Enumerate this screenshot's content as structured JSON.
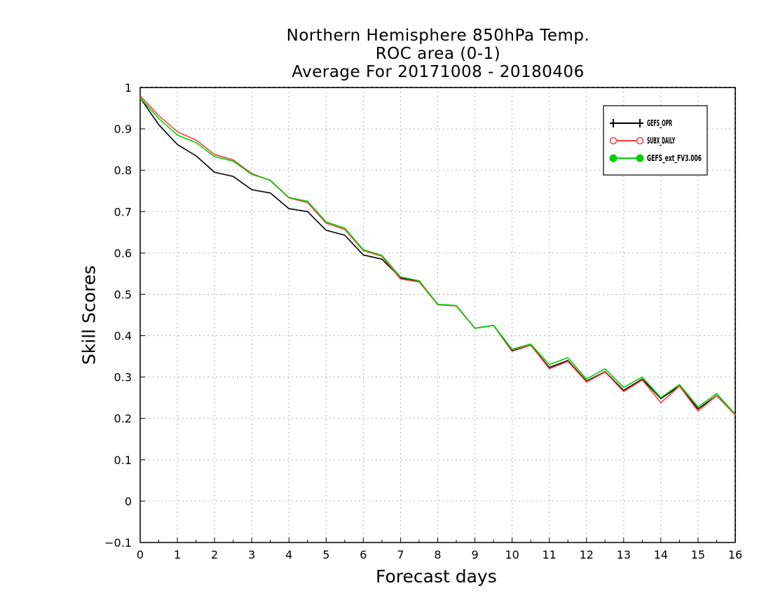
{
  "chart_data": {
    "type": "line",
    "title_lines": [
      "Northern Hemisphere 850hPa Temp.",
      "ROC area (0-1)",
      "Average For 20171008 - 20180406"
    ],
    "xlabel": "Forecast days",
    "ylabel": "Skill Scores",
    "xlim": [
      0,
      16
    ],
    "ylim": [
      -0.1,
      1
    ],
    "xticks": [
      0,
      1,
      2,
      3,
      4,
      5,
      6,
      7,
      8,
      9,
      10,
      11,
      12,
      13,
      14,
      15,
      16
    ],
    "yticks": [
      -0.1,
      0,
      0.1,
      0.2,
      0.3,
      0.4,
      0.5,
      0.6,
      0.7,
      0.8,
      0.9,
      1
    ],
    "ytick_labels": [
      "−0.1",
      "0",
      "0.1",
      "0.2",
      "0.3",
      "0.4",
      "0.5",
      "0.6",
      "0.7",
      "0.8",
      "0.9",
      "1"
    ],
    "grid": true,
    "legend_position": "top-right",
    "x": [
      0,
      0.5,
      1,
      1.5,
      2,
      2.5,
      3,
      3.5,
      4,
      4.5,
      5,
      5.5,
      6,
      6.5,
      7,
      7.5,
      8,
      8.5,
      9,
      9.5,
      10,
      10.5,
      11,
      11.5,
      12,
      12.5,
      13,
      13.5,
      14,
      14.5,
      15,
      15.5,
      16
    ],
    "series": [
      {
        "name": "GEFS_OPR",
        "color": "#000000",
        "marker": "plus",
        "values": [
          0.975,
          0.91,
          0.862,
          0.835,
          0.795,
          0.785,
          0.753,
          0.745,
          0.707,
          0.7,
          0.655,
          0.643,
          0.595,
          0.585,
          0.54,
          0.532,
          0.475,
          0.472,
          0.418,
          0.425,
          0.363,
          0.377,
          0.323,
          0.34,
          0.29,
          0.313,
          0.268,
          0.295,
          0.248,
          0.278,
          0.223,
          0.255,
          0.21
        ]
      },
      {
        "name": "SUBX_DAILY",
        "color": "#ff3b3b",
        "marker": "open-circle",
        "values": [
          0.98,
          0.932,
          0.893,
          0.873,
          0.838,
          0.825,
          0.792,
          0.775,
          0.733,
          0.722,
          0.672,
          0.657,
          0.606,
          0.592,
          0.537,
          0.53,
          0.475,
          0.472,
          0.418,
          0.425,
          0.365,
          0.377,
          0.32,
          0.338,
          0.288,
          0.312,
          0.265,
          0.293,
          0.238,
          0.278,
          0.218,
          0.255,
          0.208
        ]
      },
      {
        "name": "GEFS_ext_FV3.006",
        "color": "#00d000",
        "marker": "filled-circle",
        "values": [
          0.975,
          0.925,
          0.885,
          0.867,
          0.833,
          0.822,
          0.79,
          0.776,
          0.734,
          0.725,
          0.675,
          0.66,
          0.608,
          0.594,
          0.542,
          0.533,
          0.476,
          0.473,
          0.418,
          0.425,
          0.367,
          0.38,
          0.33,
          0.347,
          0.295,
          0.32,
          0.275,
          0.3,
          0.25,
          0.282,
          0.228,
          0.26,
          0.21
        ]
      }
    ]
  }
}
